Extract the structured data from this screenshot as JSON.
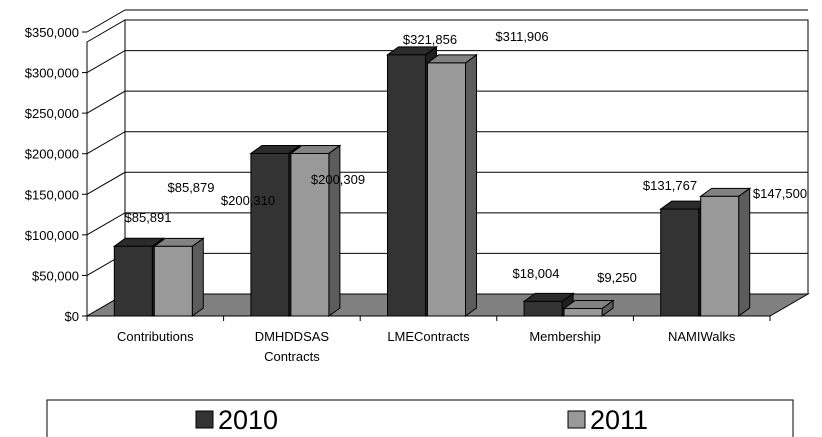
{
  "chart_data": {
    "type": "bar",
    "title": "",
    "xlabel": "",
    "ylabel": "",
    "ylim": [
      0,
      350000
    ],
    "ytick_step": 50000,
    "yticks": [
      "$0",
      "$50,000",
      "$100,000",
      "$150,000",
      "$200,000",
      "$250,000",
      "$300,000",
      "$350,000"
    ],
    "categories": [
      [
        "Contributions"
      ],
      [
        "DMHDDSAS",
        "Contracts"
      ],
      [
        "LMEContracts"
      ],
      [
        "Membership"
      ],
      [
        "NAMIWalks"
      ]
    ],
    "series": [
      {
        "name": "2010",
        "color": "#333333",
        "values": [
          85891,
          200310,
          321856,
          18004,
          131767
        ],
        "labels": [
          "$85,891",
          "$200,310",
          "$321,856",
          "$18,004",
          "$131,767"
        ]
      },
      {
        "name": "2011",
        "color": "#999999",
        "values": [
          85879,
          200309,
          311906,
          9250,
          147500
        ],
        "labels": [
          "$85,879",
          "$200,309",
          "$311,906",
          "$9,250",
          "$147,500"
        ]
      }
    ],
    "grid": true,
    "legend": "bottom",
    "floor_color": "#808080",
    "style": "3d-clustered-column"
  }
}
